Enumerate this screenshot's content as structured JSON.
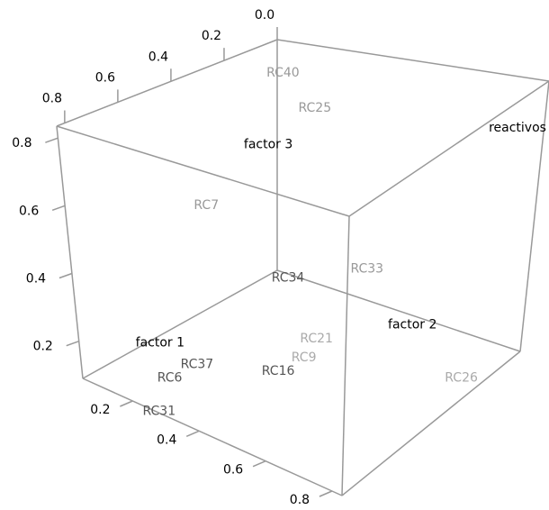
{
  "chart_data": {
    "type": "scatter3d",
    "labels": [
      "RC40",
      "RC25",
      "factor 3",
      "reactivos",
      "RC7",
      "RC34",
      "RC33",
      "factor 2",
      "RC21",
      "RC9",
      "RC16",
      "factor 1",
      "RC37",
      "RC6",
      "RC31",
      "RC26"
    ],
    "x": [
      0.097,
      0.22,
      0.21,
      0.83,
      0.21,
      0.21,
      0.62,
      0.81,
      0.53,
      0.52,
      0.47,
      0.17,
      0.28,
      0.26,
      0.28,
      0.81
    ],
    "y": [
      0.04,
      0.08,
      0.25,
      0.12,
      0.5,
      0.17,
      0.42,
      0.5,
      0.5,
      0.54,
      0.58,
      0.66,
      0.66,
      0.75,
      0.83,
      0.25
    ],
    "z": [
      0.75,
      0.68,
      0.63,
      0.76,
      0.54,
      0.19,
      0.45,
      0.39,
      0.26,
      0.22,
      0.18,
      0.18,
      0.16,
      0.15,
      0.095,
      0.13
    ],
    "colors": [
      "#999999",
      "#999999",
      "#000000",
      "#000000",
      "#999999",
      "#555555",
      "#999999",
      "#000000",
      "#aaaaaa",
      "#aaaaaa",
      "#555555",
      "#000000",
      "#555555",
      "#555555",
      "#555555",
      "#aaaaaa"
    ],
    "xlim": [
      0.05,
      0.83
    ],
    "xticks": [
      0.2,
      0.4,
      0.6,
      0.8
    ],
    "ylim": [
      0,
      0.83
    ],
    "yticks": [
      {
        "value": 0,
        "label": "0.0"
      },
      0.2,
      0.4,
      0.6,
      0.8
    ],
    "zlim": [
      0.09,
      0.835
    ],
    "zticks": [
      0.2,
      0.4,
      0.6,
      0.8
    ]
  }
}
